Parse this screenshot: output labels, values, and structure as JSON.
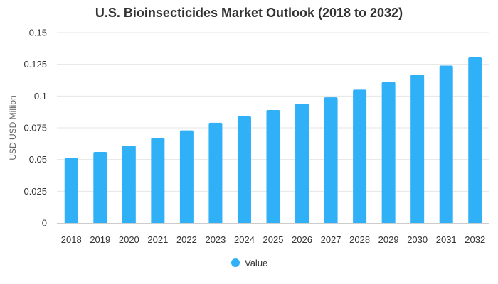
{
  "chart_data": {
    "type": "bar",
    "title": "U.S. Bioinsecticides Market Outlook (2018 to 2032)",
    "xlabel": "",
    "ylabel": "USD USD Million",
    "categories": [
      "2018",
      "2019",
      "2020",
      "2021",
      "2022",
      "2023",
      "2024",
      "2025",
      "2026",
      "2027",
      "2028",
      "2029",
      "2030",
      "2031",
      "2032"
    ],
    "series": [
      {
        "name": "Value",
        "values": [
          0.051,
          0.056,
          0.061,
          0.067,
          0.073,
          0.079,
          0.084,
          0.089,
          0.094,
          0.099,
          0.105,
          0.111,
          0.117,
          0.124,
          0.131
        ]
      }
    ],
    "ylim": [
      0,
      0.15
    ],
    "yticks": [
      "0",
      "0.025",
      "0.05",
      "0.075",
      "0.1",
      "0.125",
      "0.15"
    ],
    "grid": "horizontal",
    "legend_position": "bottom",
    "bar_color": "#2fb0f7",
    "grid_color": "#e6e6e6",
    "axis_color": "#cccccc"
  }
}
